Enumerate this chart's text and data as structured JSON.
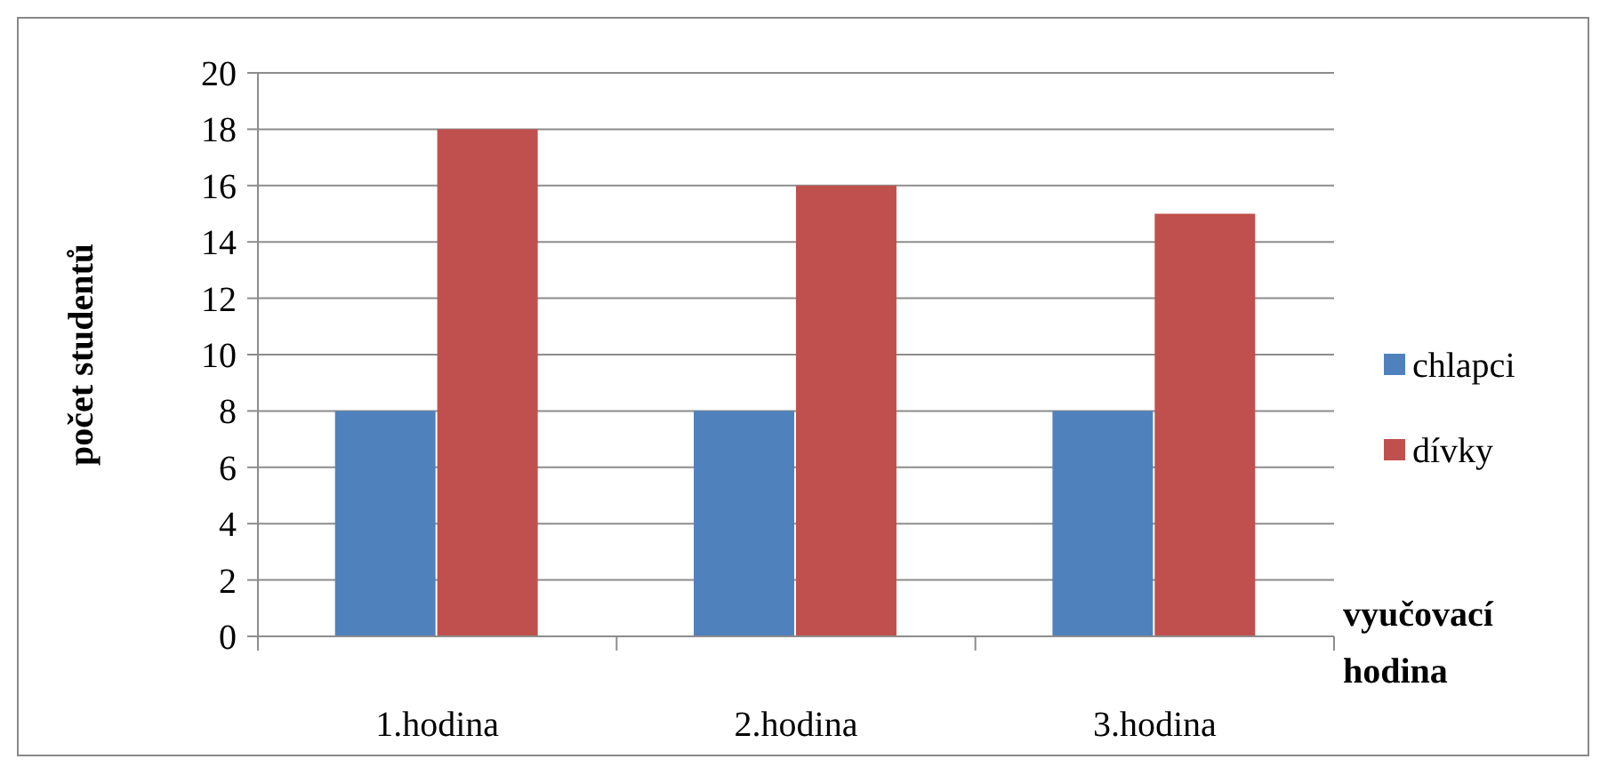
{
  "chart_data": {
    "type": "bar",
    "xlabel": "vyučovací hodina",
    "ylabel": "počet studentů",
    "categories": [
      "1.hodina",
      "2.hodina",
      "3.hodina"
    ],
    "series": [
      {
        "name": "chlapci",
        "color": "#4f81bd",
        "values": [
          8,
          8,
          8
        ]
      },
      {
        "name": "dívky",
        "color": "#c0504d",
        "values": [
          18,
          16,
          15
        ]
      }
    ],
    "ylim": [
      0,
      20
    ],
    "yticks": [
      0,
      2,
      4,
      6,
      8,
      10,
      12,
      14,
      16,
      18,
      20
    ],
    "grid": "y",
    "legend": "right"
  }
}
